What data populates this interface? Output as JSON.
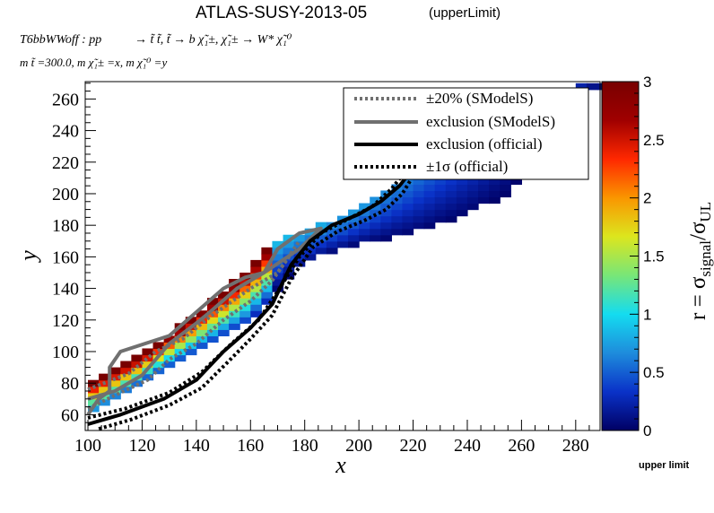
{
  "header": {
    "title": "ATLAS-SUSY-2013-05",
    "subtitle": "(upperLimit)",
    "process_prefix": "T6bbWWoff : pp",
    "process_body": "→ t̃ t̃, t̃ → b χ̃₁±, χ̃₁± → W* χ̃₁⁰",
    "masses": "m t̃ =300.0, m χ̃₁± =x, m χ̃₁⁰ =y"
  },
  "footer": {
    "label": "upper limit"
  },
  "colorbar": {
    "title": "r = σsignal/σUL",
    "title_main": "r = σ",
    "title_sub1": "signal",
    "title_slash": "/σ",
    "title_sub2": "UL",
    "range": [
      0,
      3
    ],
    "ticks": [
      "0",
      "0.5",
      "1",
      "1.5",
      "2",
      "2.5",
      "3"
    ],
    "stops": [
      "#000064",
      "#0a32c8",
      "#1e8cdc",
      "#14dcf0",
      "#78e678",
      "#dce61e",
      "#fa9600",
      "#ff2800",
      "#a00000",
      "#780000"
    ]
  },
  "legend": {
    "entries": [
      {
        "label": "±20% (SModelS)",
        "style": "dotted",
        "color": "#707070"
      },
      {
        "label": "exclusion (SModelS)",
        "style": "solid",
        "color": "#707070"
      },
      {
        "label": "exclusion (official)",
        "style": "solid",
        "color": "#000000"
      },
      {
        "label": "±1σ (official)",
        "style": "dotted",
        "color": "#000000"
      }
    ]
  },
  "chart_data": {
    "type": "heatmap",
    "xlabel": "x",
    "ylabel": "y",
    "xlim": [
      99,
      289
    ],
    "ylim": [
      50,
      271
    ],
    "xticks": [
      100,
      120,
      140,
      160,
      180,
      200,
      220,
      240,
      260,
      280
    ],
    "yticks": [
      60,
      80,
      100,
      120,
      140,
      160,
      180,
      200,
      220,
      240,
      260
    ],
    "zlabel": "r = σsignal/σUL",
    "zlim": [
      0,
      3
    ],
    "cell_size": [
      4,
      4
    ],
    "band": {
      "lower_edge": [
        [
          100,
          58
        ],
        [
          120,
          80
        ],
        [
          140,
          100
        ],
        [
          160,
          120
        ],
        [
          175,
          150
        ],
        [
          185,
          160
        ],
        [
          200,
          168
        ],
        [
          220,
          175
        ],
        [
          240,
          187
        ],
        [
          255,
          200
        ],
        [
          270,
          235
        ],
        [
          285,
          265
        ]
      ],
      "upper_edge": [
        [
          100,
          80
        ],
        [
          120,
          98
        ],
        [
          140,
          124
        ],
        [
          155,
          146
        ],
        [
          168,
          170
        ],
        [
          185,
          180
        ],
        [
          200,
          190
        ],
        [
          220,
          210
        ],
        [
          245,
          230
        ],
        [
          260,
          250
        ],
        [
          285,
          271
        ]
      ]
    },
    "series": [
      {
        "name": "exclusion (SModelS)",
        "points": [
          [
            100,
            60
          ],
          [
            104,
            70
          ],
          [
            108,
            75
          ],
          [
            108,
            90
          ],
          [
            112,
            100
          ],
          [
            130,
            110
          ],
          [
            150,
            140
          ],
          [
            158,
            147
          ],
          [
            165,
            150
          ],
          [
            170,
            165
          ],
          [
            178,
            175
          ],
          [
            186,
            178
          ],
          [
            178,
            165
          ],
          [
            165,
            150
          ],
          [
            155,
            140
          ],
          [
            145,
            125
          ],
          [
            140,
            118
          ],
          [
            130,
            105
          ],
          [
            120,
            85
          ],
          [
            110,
            75
          ],
          [
            100,
            70
          ]
        ]
      },
      {
        "name": "±20% (SModelS)",
        "points": [
          [
            100,
            76
          ],
          [
            115,
            86
          ],
          [
            125,
            100
          ],
          [
            135,
            108
          ],
          [
            145,
            122
          ],
          [
            160,
            140
          ],
          [
            170,
            150
          ],
          [
            178,
            170
          ]
        ]
      },
      {
        "name": "±20% (SModelS) lower",
        "points": [
          [
            100,
            64
          ],
          [
            112,
            74
          ],
          [
            122,
            82
          ],
          [
            130,
            95
          ],
          [
            140,
            105
          ],
          [
            150,
            120
          ],
          [
            160,
            132
          ],
          [
            168,
            145
          ],
          [
            175,
            162
          ]
        ]
      },
      {
        "name": "exclusion (official)",
        "points": [
          [
            100,
            54
          ],
          [
            112,
            60
          ],
          [
            128,
            70
          ],
          [
            140,
            82
          ],
          [
            150,
            100
          ],
          [
            160,
            115
          ],
          [
            168,
            130
          ],
          [
            175,
            155
          ],
          [
            182,
            170
          ],
          [
            190,
            180
          ],
          [
            200,
            187
          ],
          [
            208,
            195
          ],
          [
            215,
            205
          ],
          [
            220,
            216
          ]
        ]
      },
      {
        "name": "±1σ (official) upper",
        "points": [
          [
            100,
            58
          ],
          [
            114,
            64
          ],
          [
            130,
            74
          ],
          [
            142,
            87
          ],
          [
            153,
            105
          ],
          [
            163,
            120
          ],
          [
            170,
            138
          ],
          [
            178,
            160
          ],
          [
            186,
            175
          ],
          [
            195,
            183
          ],
          [
            205,
            192
          ],
          [
            212,
            203
          ],
          [
            218,
            216
          ]
        ]
      },
      {
        "name": "±1σ (official) lower",
        "points": [
          [
            104,
            51
          ],
          [
            116,
            57
          ],
          [
            130,
            66
          ],
          [
            142,
            77
          ],
          [
            152,
            94
          ],
          [
            160,
            108
          ],
          [
            168,
            123
          ],
          [
            175,
            146
          ],
          [
            183,
            166
          ],
          [
            192,
            176
          ],
          [
            202,
            183
          ],
          [
            210,
            190
          ],
          [
            216,
            200
          ],
          [
            221,
            214
          ]
        ]
      }
    ]
  }
}
